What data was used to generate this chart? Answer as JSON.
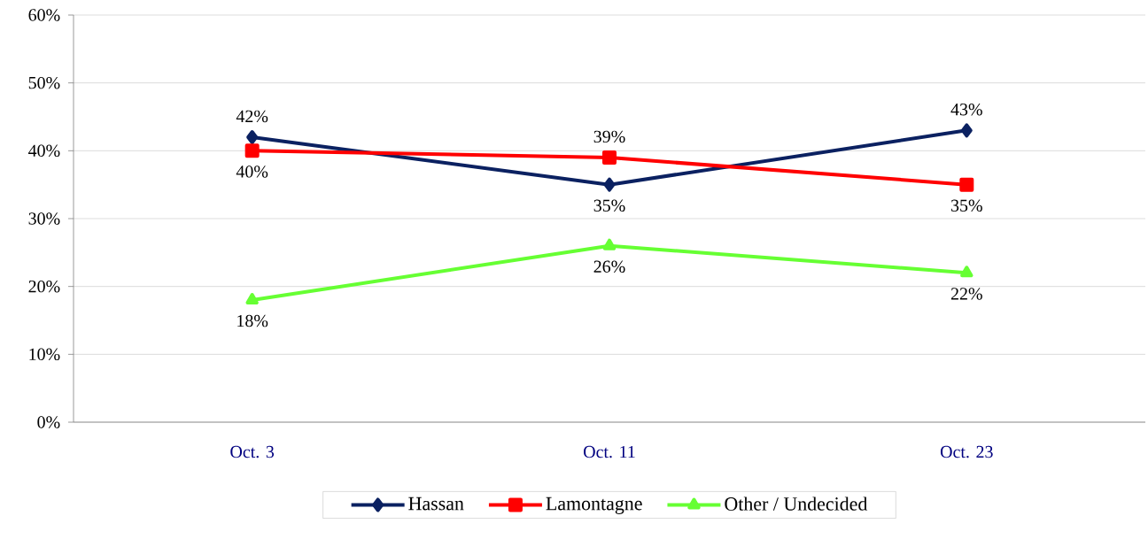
{
  "chart_data": {
    "type": "line",
    "categories": [
      "Oct. 3",
      "Oct. 11",
      "Oct. 23"
    ],
    "series": [
      {
        "name": "Hassan",
        "color": "#0b2161",
        "marker": "diamond",
        "values": [
          42,
          35,
          43
        ],
        "value_labels": [
          "42%",
          "35%",
          "43%"
        ]
      },
      {
        "name": "Lamontagne",
        "color": "#ff0000",
        "marker": "square",
        "values": [
          40,
          39,
          35
        ],
        "value_labels": [
          "40%",
          "39%",
          "35%"
        ]
      },
      {
        "name": "Other / Undecided",
        "color": "#66ff33",
        "marker": "triangle",
        "values": [
          18,
          26,
          22
        ],
        "value_labels": [
          "18%",
          "26%",
          "22%"
        ]
      }
    ],
    "ylim": [
      0,
      60
    ],
    "yticks": [
      {
        "value": 0,
        "label": "0%"
      },
      {
        "value": 10,
        "label": "10%"
      },
      {
        "value": 20,
        "label": "20%"
      },
      {
        "value": 30,
        "label": "30%"
      },
      {
        "value": 40,
        "label": "40%"
      },
      {
        "value": 50,
        "label": "50%"
      },
      {
        "value": 60,
        "label": "60%"
      }
    ],
    "grid": "y",
    "legend": "bottom",
    "line_style": "solid"
  }
}
